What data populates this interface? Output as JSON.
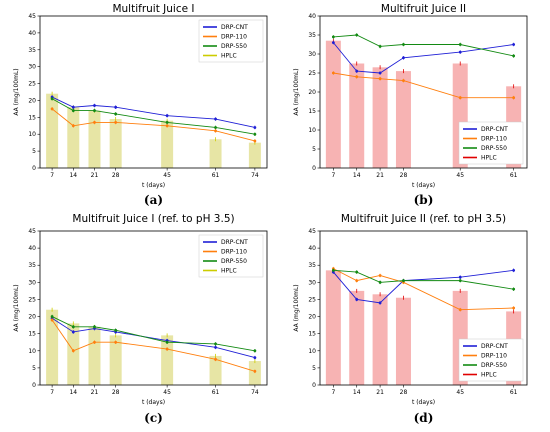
{
  "colors": {
    "DRP-CNT": "#1f1fd6",
    "DRP-110": "#ff7f0e",
    "DRP-550": "#138a13",
    "HPLC_I": "#e7e5a5",
    "HPLC_II": "#f7b3b3",
    "HPLC_line_I": "#cccc00",
    "HPLC_line_II": "#e00000"
  },
  "chart_data": [
    {
      "type": "bar",
      "title": "Multifruit Juice I",
      "caption": "(a)",
      "xlabel": "t (days)",
      "ylabel": "AA (mg/100mL)",
      "ylim": [
        0,
        45
      ],
      "yticks": [
        0,
        5,
        10,
        15,
        20,
        25,
        30,
        35,
        40,
        45
      ],
      "x": [
        7,
        14,
        21,
        28,
        45,
        61,
        74
      ],
      "legend_position": "top-right",
      "legend": [
        "DRP-CNT",
        "DRP-110",
        "DRP-550",
        "HPLC"
      ],
      "bars": {
        "name": "HPLC",
        "values": [
          22,
          18,
          17,
          14.5,
          14,
          8.5,
          7.5
        ]
      },
      "series": [
        {
          "name": "DRP-CNT",
          "values": [
            21,
            18,
            18.5,
            18,
            15.5,
            14.5,
            12
          ]
        },
        {
          "name": "DRP-110",
          "values": [
            17.5,
            12.5,
            13.5,
            13.5,
            12.5,
            11,
            8
          ]
        },
        {
          "name": "DRP-550",
          "values": [
            20.5,
            17,
            17,
            16,
            13.5,
            12,
            10
          ]
        }
      ]
    },
    {
      "type": "bar",
      "title": "Multifruit Juice II",
      "caption": "(b)",
      "xlabel": "t (days)",
      "ylabel": "AA (mg/100mL)",
      "ylim": [
        0,
        40
      ],
      "yticks": [
        0,
        5,
        10,
        15,
        20,
        25,
        30,
        35,
        40
      ],
      "x": [
        7,
        14,
        21,
        28,
        45,
        61
      ],
      "legend_position": "bottom-right",
      "legend": [
        "DRP-CNT",
        "DRP-110",
        "DRP-550",
        "HPLC"
      ],
      "bars": {
        "name": "HPLC",
        "values": [
          33.5,
          27.5,
          26.5,
          25.5,
          27.5,
          21.5
        ]
      },
      "series": [
        {
          "name": "DRP-CNT",
          "values": [
            33,
            25.5,
            25,
            29,
            30.5,
            32.5
          ]
        },
        {
          "name": "DRP-110",
          "values": [
            25,
            24,
            23.5,
            23,
            18.5,
            18.5
          ]
        },
        {
          "name": "DRP-550",
          "values": [
            34.5,
            35,
            32,
            32.5,
            32.5,
            29.5
          ]
        }
      ]
    },
    {
      "type": "bar",
      "title": "Multifruit Juice I (ref. to pH 3.5)",
      "caption": "(c)",
      "xlabel": "t (days)",
      "ylabel": "AA (mg/100mL)",
      "ylim": [
        0,
        45
      ],
      "yticks": [
        0,
        5,
        10,
        15,
        20,
        25,
        30,
        35,
        40,
        45
      ],
      "x": [
        7,
        14,
        21,
        28,
        45,
        61,
        74
      ],
      "legend_position": "top-right",
      "legend": [
        "DRP-CNT",
        "DRP-110",
        "DRP-550",
        "HPLC"
      ],
      "bars": {
        "name": "HPLC",
        "values": [
          22,
          18,
          17,
          14.5,
          14.5,
          8.5,
          7
        ]
      },
      "series": [
        {
          "name": "DRP-CNT",
          "values": [
            19.5,
            15.5,
            16.5,
            15.5,
            13,
            11,
            8
          ]
        },
        {
          "name": "DRP-110",
          "values": [
            19,
            10,
            12.5,
            12.5,
            10.5,
            7.5,
            4
          ]
        },
        {
          "name": "DRP-550",
          "values": [
            20,
            17,
            17,
            16,
            12.5,
            12,
            10
          ]
        }
      ]
    },
    {
      "type": "bar",
      "title": "Multifruit Juice II (ref. to pH 3.5)",
      "caption": "(d)",
      "xlabel": "t (days)",
      "ylabel": "AA (mg/100mL)",
      "ylim": [
        0,
        45
      ],
      "yticks": [
        0,
        5,
        10,
        15,
        20,
        25,
        30,
        35,
        40,
        45
      ],
      "x": [
        7,
        14,
        21,
        28,
        45,
        61
      ],
      "legend_position": "bottom-right",
      "legend": [
        "DRP-CNT",
        "DRP-110",
        "DRP-550",
        "HPLC"
      ],
      "bars": {
        "name": "HPLC",
        "values": [
          33.5,
          27.5,
          26.5,
          25.5,
          27.5,
          21.5
        ]
      },
      "series": [
        {
          "name": "DRP-CNT",
          "values": [
            33,
            25,
            24,
            30.5,
            31.5,
            33.5
          ]
        },
        {
          "name": "DRP-110",
          "values": [
            34,
            30.5,
            32,
            30,
            22,
            22.5
          ]
        },
        {
          "name": "DRP-550",
          "values": [
            33.5,
            33,
            30,
            30.5,
            30.5,
            28
          ]
        }
      ]
    }
  ]
}
